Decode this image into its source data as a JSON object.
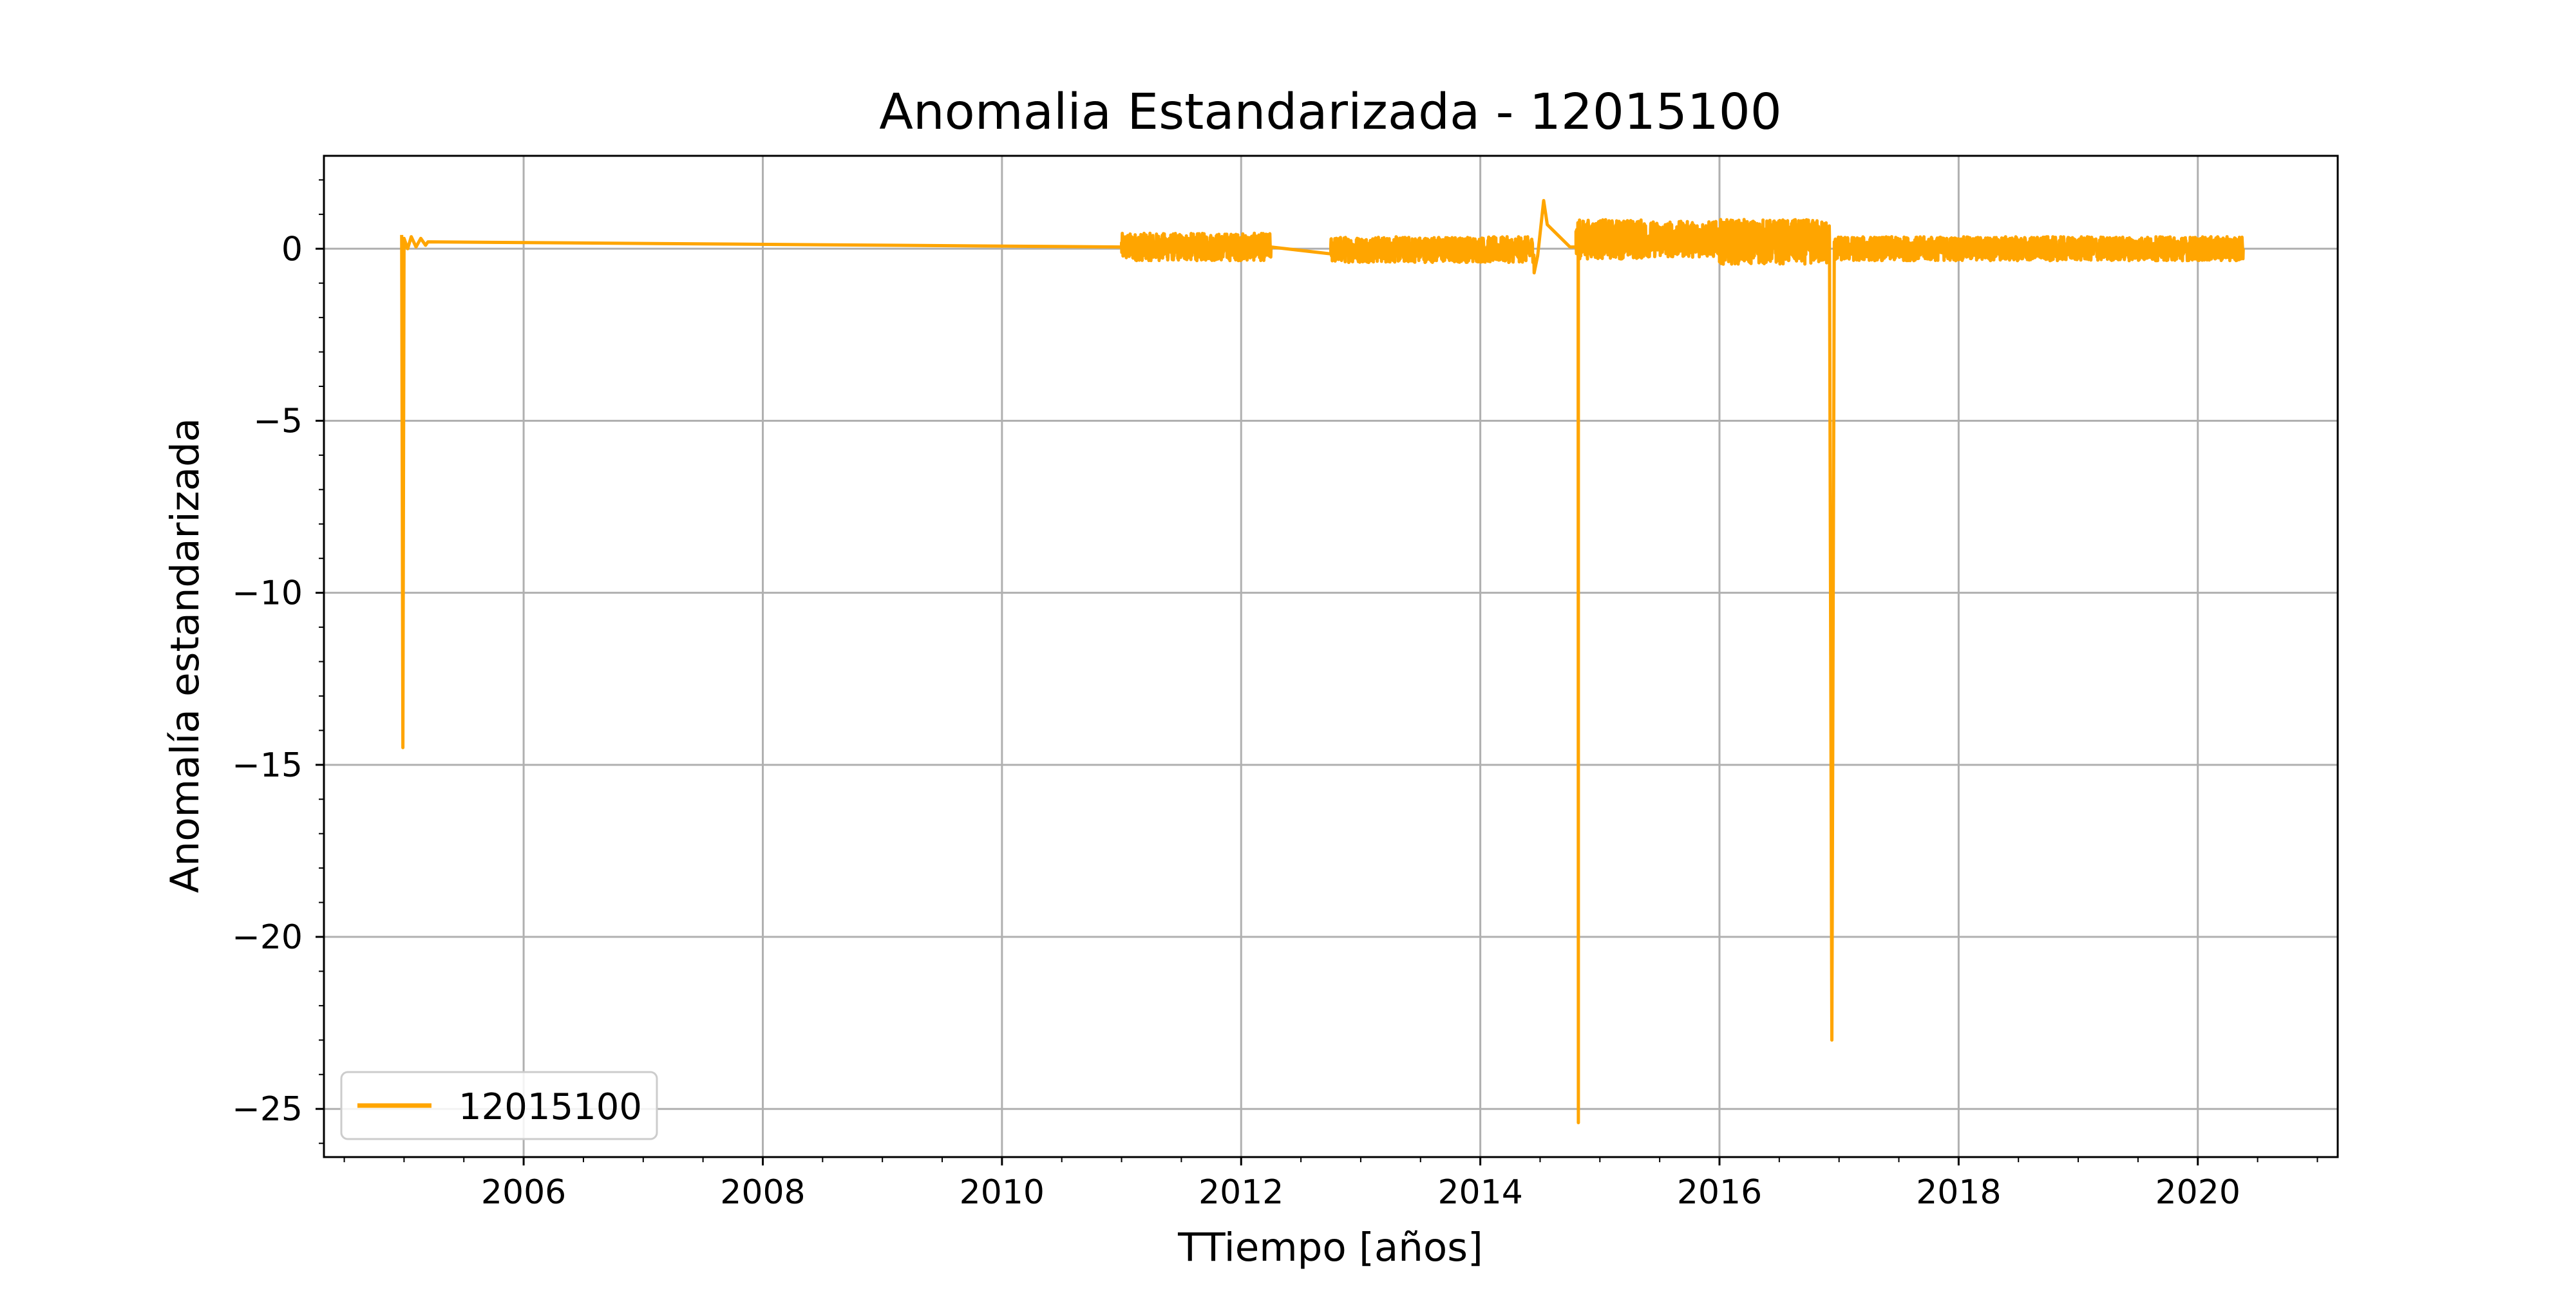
{
  "chart_data": {
    "type": "line",
    "title": "Anomalia Estandarizada - 12015100",
    "xlabel": "TTiempo [años]",
    "ylabel": "Anomalía estandarizada",
    "xlim": [
      2004.33,
      2021.17
    ],
    "ylim": [
      -26.4,
      2.7
    ],
    "x_ticks": [
      2006,
      2008,
      2010,
      2012,
      2014,
      2016,
      2018,
      2020
    ],
    "x_tick_labels": [
      "2006",
      "2008",
      "2010",
      "2012",
      "2014",
      "2016",
      "2018",
      "2020"
    ],
    "y_ticks": [
      0,
      -5,
      -10,
      -15,
      -20,
      -25
    ],
    "y_tick_labels": [
      "0",
      "−5",
      "−10",
      "−15",
      "−20",
      "−25"
    ],
    "grid": true,
    "legend_position": "lower-left",
    "series": [
      {
        "name": "12015100",
        "color": "#ffa500",
        "points": [
          [
            2004.98,
            0.4
          ],
          [
            2004.99,
            -14.5
          ],
          [
            2005.0,
            0.3
          ],
          [
            2005.03,
            0.0
          ],
          [
            2005.06,
            0.35
          ],
          [
            2005.1,
            0.05
          ],
          [
            2005.14,
            0.3
          ],
          [
            2005.18,
            0.1
          ],
          [
            2005.2,
            0.2
          ],
          [
            2011.0,
            0.05
          ],
          [
            2011.1,
            0.25
          ],
          [
            2011.25,
            -0.1
          ],
          [
            2011.4,
            0.3
          ],
          [
            2011.55,
            -0.15
          ],
          [
            2011.7,
            0.35
          ],
          [
            2011.85,
            -0.05
          ],
          [
            2012.0,
            0.3
          ],
          [
            2012.15,
            -0.1
          ],
          [
            2012.25,
            0.05
          ],
          [
            2012.75,
            -0.15
          ],
          [
            2012.85,
            0.2
          ],
          [
            2013.1,
            -0.1
          ],
          [
            2013.35,
            0.15
          ],
          [
            2013.6,
            -0.05
          ],
          [
            2013.85,
            0.15
          ],
          [
            2014.1,
            -0.1
          ],
          [
            2014.3,
            0.1
          ],
          [
            2014.45,
            -0.7
          ],
          [
            2014.48,
            -0.2
          ],
          [
            2014.53,
            1.4
          ],
          [
            2014.56,
            0.7
          ],
          [
            2014.75,
            0.05
          ],
          [
            2014.8,
            0.05
          ],
          [
            2014.82,
            -25.4
          ],
          [
            2014.84,
            0.5
          ],
          [
            2015.0,
            0.0
          ],
          [
            2015.2,
            0.8
          ],
          [
            2015.4,
            0.0
          ],
          [
            2015.6,
            0.7
          ],
          [
            2015.8,
            -0.1
          ],
          [
            2016.0,
            0.3
          ],
          [
            2016.2,
            -0.2
          ],
          [
            2016.4,
            0.8
          ],
          [
            2016.6,
            0.0
          ],
          [
            2016.8,
            0.75
          ],
          [
            2016.92,
            0.3
          ],
          [
            2016.94,
            -23.0
          ],
          [
            2016.96,
            0.2
          ],
          [
            2017.2,
            0.0
          ],
          [
            2017.5,
            0.2
          ],
          [
            2017.8,
            -0.1
          ],
          [
            2018.1,
            0.15
          ],
          [
            2018.4,
            -0.15
          ],
          [
            2018.7,
            0.1
          ],
          [
            2019.0,
            -0.15
          ],
          [
            2019.3,
            0.1
          ],
          [
            2019.6,
            -0.15
          ],
          [
            2019.9,
            0.15
          ],
          [
            2020.2,
            -0.2
          ],
          [
            2020.38,
            0.0
          ]
        ]
      }
    ],
    "noise_segments": [
      {
        "x_start": 2011.0,
        "x_end": 2012.25,
        "low": -0.35,
        "high": 0.45
      },
      {
        "x_start": 2012.75,
        "x_end": 2014.45,
        "low": -0.4,
        "high": 0.35
      },
      {
        "x_start": 2014.8,
        "x_end": 2015.4,
        "low": -0.3,
        "high": 0.85
      },
      {
        "x_start": 2015.4,
        "x_end": 2016.0,
        "low": -0.25,
        "high": 0.8
      },
      {
        "x_start": 2016.0,
        "x_end": 2016.92,
        "low": -0.45,
        "high": 0.85
      },
      {
        "x_start": 2016.96,
        "x_end": 2020.38,
        "low": -0.35,
        "high": 0.35
      }
    ],
    "legend": {
      "entries": [
        "12015100"
      ]
    }
  }
}
